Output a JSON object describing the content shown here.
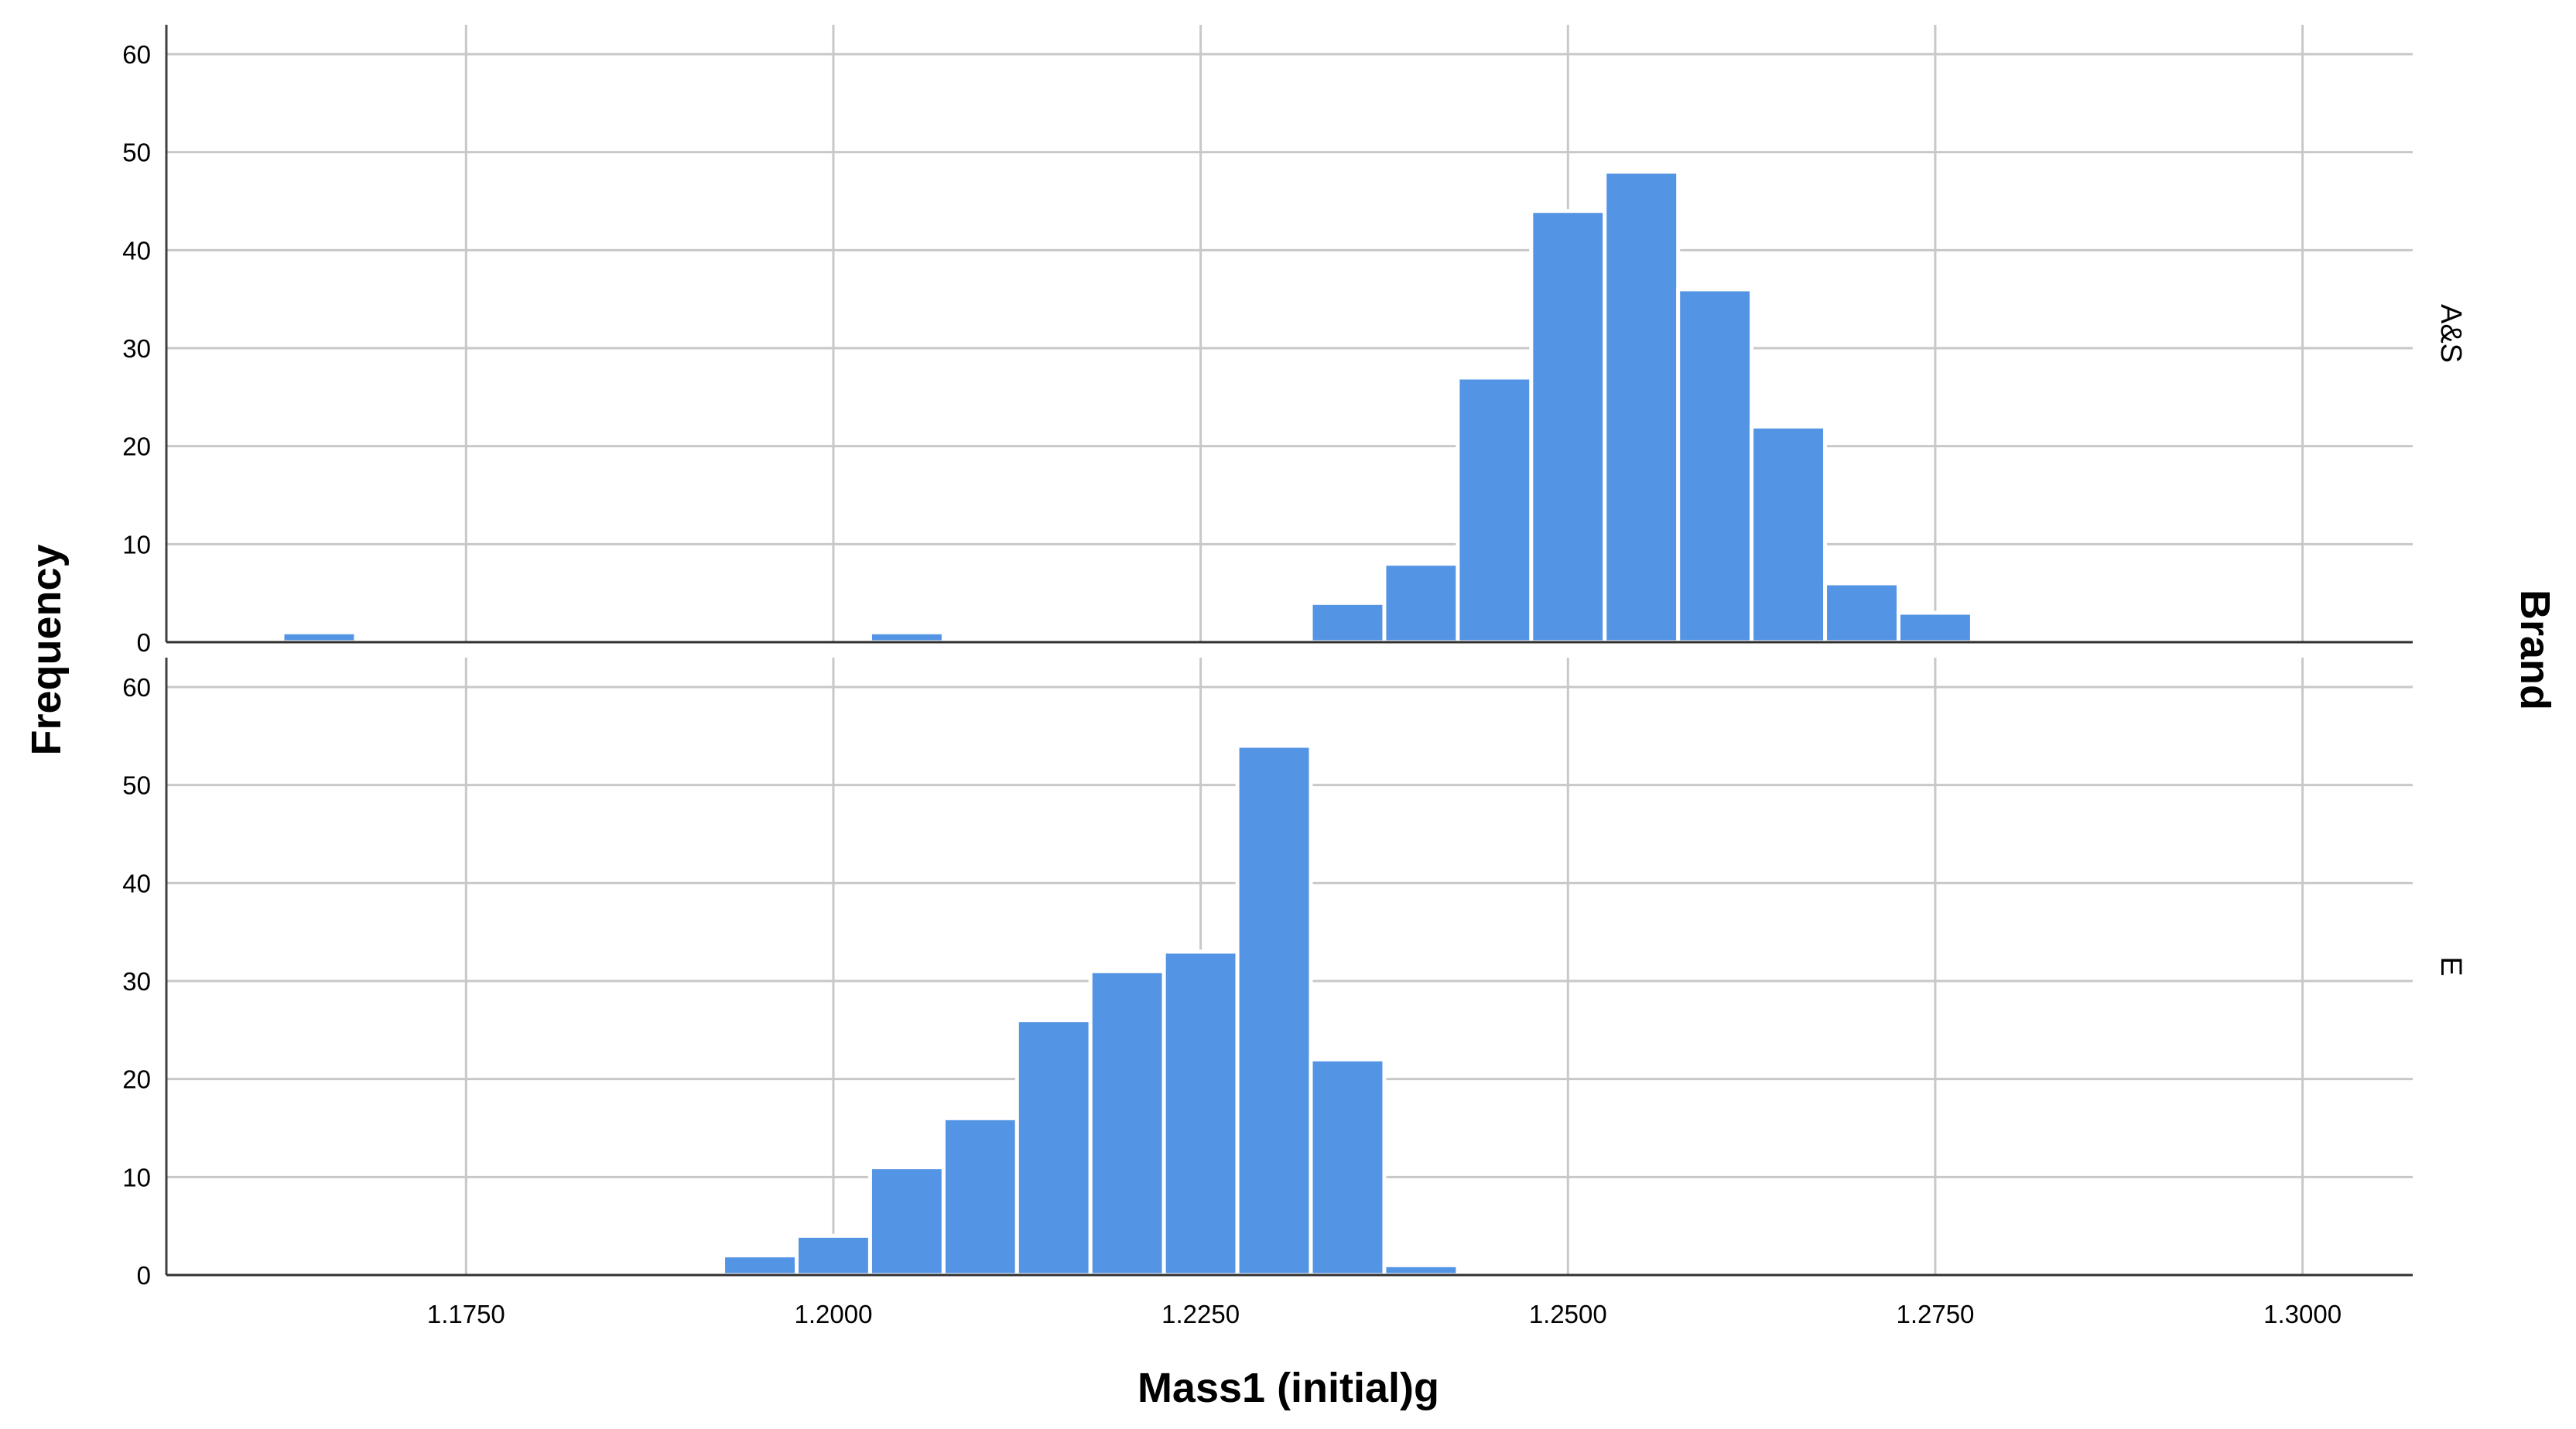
{
  "chart_data": {
    "type": "bar",
    "subtype": "histogram",
    "xlabel": "Mass1 (initial)g",
    "ylabel": "Frequency",
    "facet_label": "Brand",
    "xlim": [
      1.1546,
      1.3075
    ],
    "ylim": [
      0,
      63
    ],
    "x_ticks": [
      "1.1750",
      "1.2000",
      "1.2250",
      "1.2500",
      "1.2750",
      "1.3000"
    ],
    "y_ticks": [
      "0",
      "10",
      "20",
      "30",
      "40",
      "50",
      "60"
    ],
    "grid": true,
    "bar_color": "#5494e4",
    "panels": [
      {
        "name": "A&S",
        "bins": [
          {
            "x0": 1.1625,
            "x1": 1.1675,
            "count": 1
          },
          {
            "x0": 1.2025,
            "x1": 1.2075,
            "count": 1
          },
          {
            "x0": 1.2325,
            "x1": 1.2375,
            "count": 4
          },
          {
            "x0": 1.2375,
            "x1": 1.2425,
            "count": 8
          },
          {
            "x0": 1.2425,
            "x1": 1.2475,
            "count": 27
          },
          {
            "x0": 1.2475,
            "x1": 1.2525,
            "count": 44
          },
          {
            "x0": 1.2525,
            "x1": 1.2575,
            "count": 48
          },
          {
            "x0": 1.2575,
            "x1": 1.2625,
            "count": 36
          },
          {
            "x0": 1.2625,
            "x1": 1.2675,
            "count": 22
          },
          {
            "x0": 1.2675,
            "x1": 1.2725,
            "count": 6
          },
          {
            "x0": 1.2725,
            "x1": 1.2775,
            "count": 3
          }
        ]
      },
      {
        "name": "E",
        "bins": [
          {
            "x0": 1.1925,
            "x1": 1.1975,
            "count": 2
          },
          {
            "x0": 1.1975,
            "x1": 1.2025,
            "count": 4
          },
          {
            "x0": 1.2025,
            "x1": 1.2075,
            "count": 11
          },
          {
            "x0": 1.2075,
            "x1": 1.2125,
            "count": 16
          },
          {
            "x0": 1.2125,
            "x1": 1.2175,
            "count": 26
          },
          {
            "x0": 1.2175,
            "x1": 1.2225,
            "count": 31
          },
          {
            "x0": 1.2225,
            "x1": 1.2275,
            "count": 33
          },
          {
            "x0": 1.2275,
            "x1": 1.2325,
            "count": 54
          },
          {
            "x0": 1.2325,
            "x1": 1.2375,
            "count": 22
          },
          {
            "x0": 1.2375,
            "x1": 1.2425,
            "count": 1
          }
        ]
      }
    ]
  }
}
